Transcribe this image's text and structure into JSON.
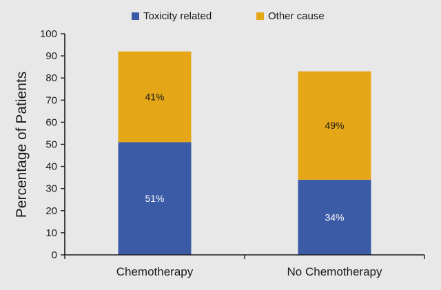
{
  "chart_data": {
    "type": "bar",
    "stacked": true,
    "categories": [
      "Chemotherapy",
      "No Chemotherapy"
    ],
    "series": [
      {
        "name": "Toxicity related",
        "values": [
          51,
          34
        ],
        "labels": [
          "51%",
          "34%"
        ],
        "color": "#3b5ba7",
        "label_color": "#ffffff"
      },
      {
        "name": "Other cause",
        "values": [
          41,
          49
        ],
        "labels": [
          "41%",
          "49%"
        ],
        "color": "#e5a718",
        "label_color": "#1a1a1a"
      }
    ],
    "ylabel": "Percentage of Patients",
    "xlabel": "",
    "ylim": [
      0,
      100
    ],
    "yticks": [
      0,
      10,
      20,
      30,
      40,
      50,
      60,
      70,
      80,
      90,
      100
    ],
    "grid": false,
    "legend_position": "top-center",
    "background": "#e8e8e8",
    "axis_color": "#1a1a1a"
  }
}
